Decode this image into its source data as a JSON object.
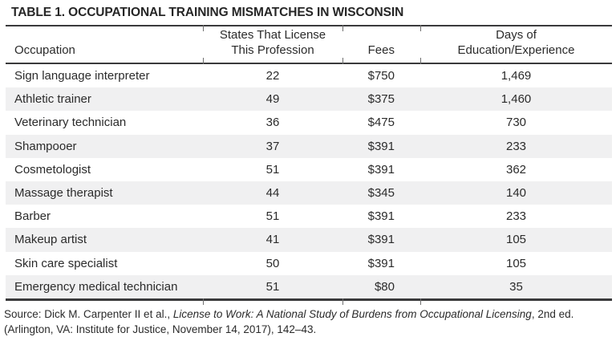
{
  "title": "TABLE 1. OCCUPATIONAL TRAINING MISMATCHES IN WISCONSIN",
  "table": {
    "headers": {
      "occupation": "Occupation",
      "states": "States That License\nThis Profession",
      "fees": "Fees",
      "days": "Days of\nEducation/Experience"
    },
    "rows": [
      [
        "Sign language interpreter",
        "22",
        "$750",
        "1,469"
      ],
      [
        "Athletic trainer",
        "49",
        "$375",
        "1,460"
      ],
      [
        "Veterinary technician",
        "36",
        "$475",
        "730"
      ],
      [
        "Shampooer",
        "37",
        "$391",
        "233"
      ],
      [
        "Cosmetologist",
        "51",
        "$391",
        "362"
      ],
      [
        "Massage therapist",
        "44",
        "$345",
        "140"
      ],
      [
        "Barber",
        "51",
        "$391",
        "233"
      ],
      [
        "Makeup artist",
        "41",
        "$391",
        "105"
      ],
      [
        "Skin care specialist",
        "50",
        "$391",
        "105"
      ],
      [
        "Emergency medical technician",
        "51",
        "$80",
        "35"
      ]
    ]
  },
  "source": {
    "prefix": "Source: Dick M. Carpenter II et al., ",
    "italic_title": "License to Work: A National Study of Burdens from Occupational Licensing",
    "suffix": ", 2nd ed. (Arlington, VA: Institute for Justice, November 14, 2017), 142–43."
  },
  "colors": {
    "text": "#2b2b2b",
    "rule": "#3a3a3c",
    "row_shade": "#f0f0f1"
  }
}
